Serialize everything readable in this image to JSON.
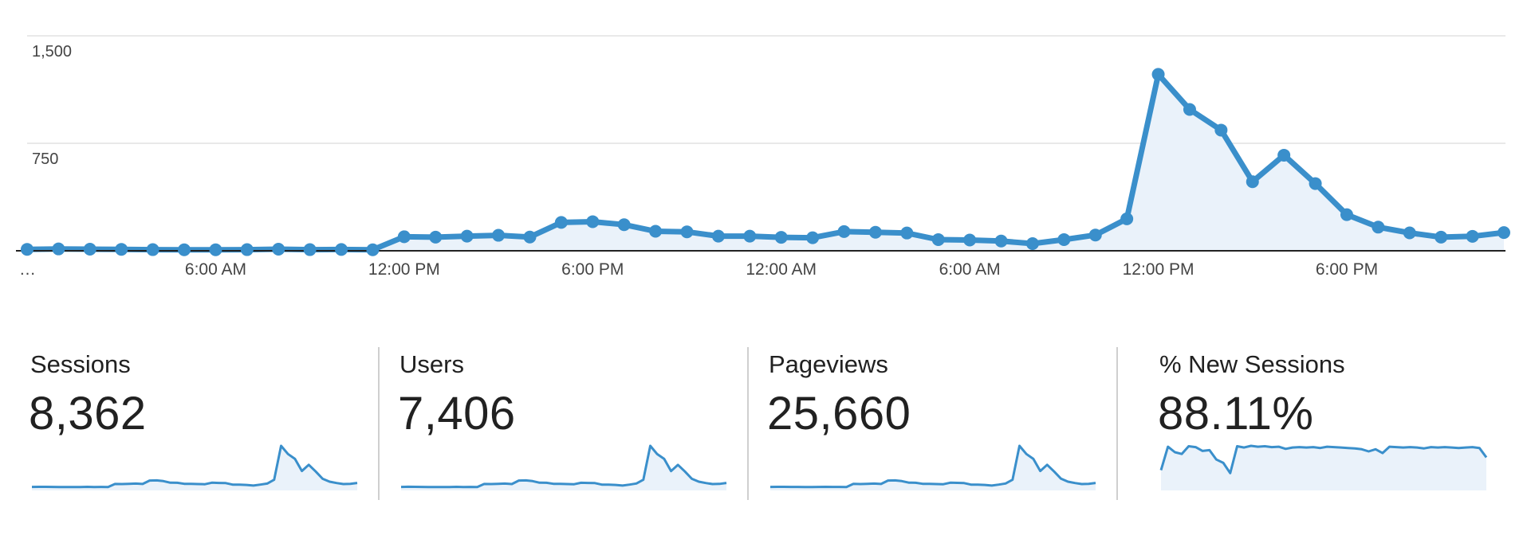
{
  "colors": {
    "line": "#3a8fcb",
    "fill": "#eaf2fa",
    "grid": "#e2e2e2",
    "axis": "#222222",
    "divider": "#cfcfcf"
  },
  "chart_data": {
    "type": "line",
    "title": "",
    "xlabel": "",
    "ylabel": "",
    "ylim": [
      0,
      1500
    ],
    "y_ticks": [
      "1,500",
      "750"
    ],
    "y_tick_values": [
      1500,
      750
    ],
    "x_tick_labels": [
      "…",
      "6:00 AM",
      "12:00 PM",
      "6:00 PM",
      "12:00 AM",
      "6:00 AM",
      "12:00 PM",
      "6:00 PM"
    ],
    "x_tick_indices": [
      0,
      6,
      12,
      18,
      24,
      30,
      36,
      42
    ],
    "series": [
      {
        "name": "Sessions",
        "values": [
          10,
          13,
          11,
          10,
          8,
          7,
          7,
          8,
          11,
          8,
          9,
          7,
          98,
          95,
          102,
          108,
          96,
          198,
          203,
          182,
          136,
          132,
          102,
          102,
          94,
          91,
          134,
          129,
          124,
          78,
          75,
          68,
          50,
          78,
          110,
          223,
          1231,
          986,
          842,
          482,
          667,
          469,
          252,
          165,
          125,
          95,
          101,
          127
        ]
      }
    ]
  },
  "metrics": [
    {
      "label": "Sessions",
      "value": "8,362",
      "spark": [
        10,
        13,
        11,
        10,
        8,
        7,
        7,
        8,
        11,
        8,
        9,
        7,
        98,
        95,
        102,
        108,
        96,
        198,
        203,
        182,
        136,
        132,
        102,
        102,
        94,
        91,
        134,
        129,
        124,
        78,
        75,
        68,
        50,
        78,
        110,
        223,
        1231,
        986,
        842,
        482,
        667,
        469,
        252,
        165,
        125,
        95,
        101,
        127
      ]
    },
    {
      "label": "Users",
      "value": "7,406",
      "spark": [
        9,
        12,
        10,
        9,
        7,
        6,
        6,
        7,
        10,
        7,
        8,
        6,
        88,
        85,
        91,
        97,
        86,
        178,
        182,
        164,
        122,
        118,
        91,
        91,
        84,
        81,
        120,
        115,
        111,
        70,
        67,
        61,
        45,
        70,
        99,
        200,
        1105,
        885,
        756,
        432,
        598,
        421,
        226,
        148,
        112,
        85,
        90,
        114
      ]
    },
    {
      "label": "Pageviews",
      "value": "25,660",
      "spark": [
        30,
        38,
        33,
        30,
        25,
        22,
        22,
        25,
        33,
        25,
        28,
        22,
        295,
        285,
        305,
        325,
        290,
        595,
        610,
        545,
        410,
        395,
        305,
        305,
        282,
        273,
        402,
        387,
        372,
        234,
        225,
        204,
        150,
        234,
        330,
        670,
        3690,
        2958,
        2526,
        1446,
        2001,
        1407,
        756,
        495,
        375,
        285,
        303,
        381
      ]
    },
    {
      "label": "% New Sessions",
      "value": "88.11%",
      "spark": [
        40,
        95,
        82,
        78,
        96,
        94,
        85,
        87,
        65,
        57,
        33,
        96,
        93,
        97,
        95,
        96,
        94,
        95,
        90,
        93,
        94,
        93,
        94,
        92,
        95,
        94,
        93,
        92,
        91,
        89,
        84,
        89,
        80,
        95,
        94,
        93,
        94,
        93,
        91,
        94,
        93,
        94,
        93,
        92,
        93,
        94,
        92,
        70
      ]
    }
  ]
}
